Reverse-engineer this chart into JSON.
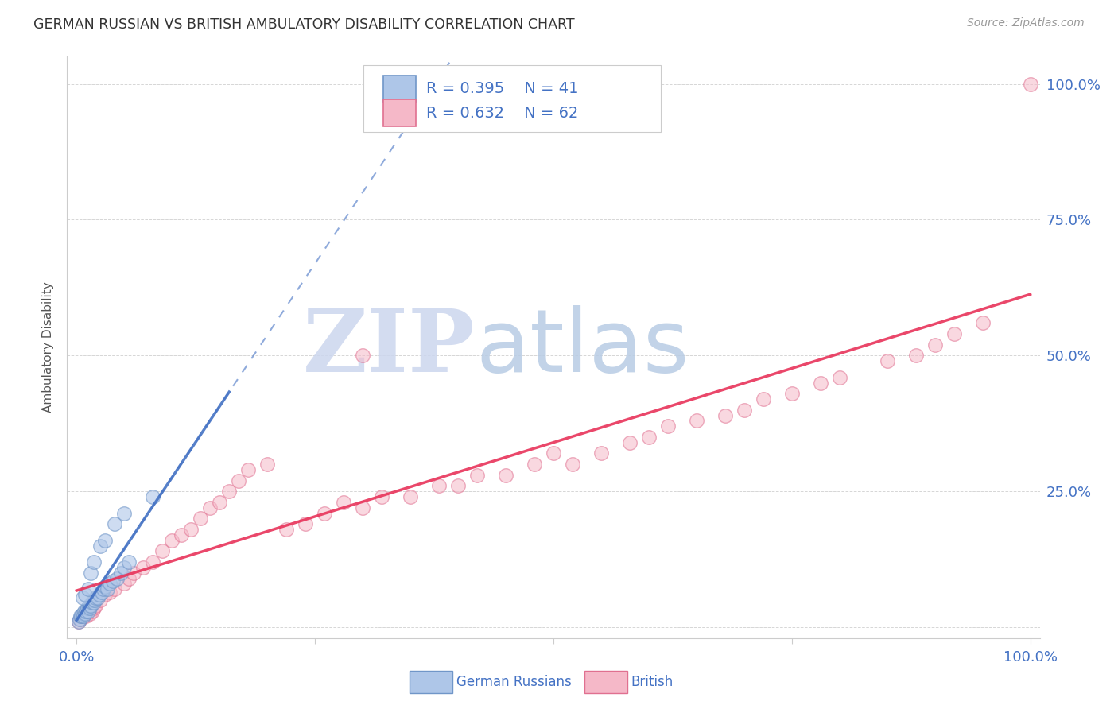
{
  "title": "GERMAN RUSSIAN VS BRITISH AMBULATORY DISABILITY CORRELATION CHART",
  "source": "Source: ZipAtlas.com",
  "ylabel": "Ambulatory Disability",
  "legend_r1": "R = 0.395",
  "legend_n1": "N = 41",
  "legend_r2": "R = 0.632",
  "legend_n2": "N = 62",
  "blue_fill": "#aec6e8",
  "blue_edge": "#7096c8",
  "blue_line": "#4472c4",
  "pink_fill": "#f5b8c8",
  "pink_edge": "#e07090",
  "pink_line": "#e8335a",
  "axis_color": "#cccccc",
  "grid_color": "#cccccc",
  "title_color": "#333333",
  "source_color": "#999999",
  "tick_color": "#4472c4",
  "ylabel_color": "#555555",
  "watermark_zip_color": "#c8d4ee",
  "watermark_atlas_color": "#b8c8e8",
  "legend_text_color": "#333333",
  "legend_value_color": "#4472c4",
  "blue_x": [
    0.002,
    0.003,
    0.004,
    0.005,
    0.006,
    0.007,
    0.008,
    0.009,
    0.01,
    0.011,
    0.012,
    0.013,
    0.014,
    0.015,
    0.016,
    0.017,
    0.018,
    0.019,
    0.02,
    0.022,
    0.024,
    0.026,
    0.028,
    0.03,
    0.032,
    0.035,
    0.038,
    0.042,
    0.046,
    0.05,
    0.055,
    0.006,
    0.009,
    0.012,
    0.015,
    0.018,
    0.025,
    0.03,
    0.04,
    0.05,
    0.08
  ],
  "blue_y": [
    0.01,
    0.015,
    0.02,
    0.02,
    0.025,
    0.02,
    0.03,
    0.025,
    0.03,
    0.035,
    0.03,
    0.04,
    0.035,
    0.04,
    0.045,
    0.05,
    0.045,
    0.05,
    0.055,
    0.055,
    0.06,
    0.065,
    0.07,
    0.075,
    0.07,
    0.08,
    0.085,
    0.09,
    0.1,
    0.11,
    0.12,
    0.055,
    0.06,
    0.07,
    0.1,
    0.12,
    0.15,
    0.16,
    0.19,
    0.21,
    0.24
  ],
  "pink_x": [
    0.002,
    0.004,
    0.006,
    0.008,
    0.01,
    0.012,
    0.014,
    0.016,
    0.018,
    0.02,
    0.025,
    0.03,
    0.035,
    0.04,
    0.05,
    0.055,
    0.06,
    0.07,
    0.08,
    0.09,
    0.1,
    0.11,
    0.12,
    0.13,
    0.14,
    0.15,
    0.16,
    0.17,
    0.18,
    0.2,
    0.22,
    0.24,
    0.26,
    0.28,
    0.3,
    0.32,
    0.35,
    0.38,
    0.4,
    0.42,
    0.45,
    0.48,
    0.5,
    0.52,
    0.55,
    0.58,
    0.6,
    0.62,
    0.65,
    0.68,
    0.7,
    0.72,
    0.75,
    0.78,
    0.8,
    0.85,
    0.88,
    0.9,
    0.92,
    0.95,
    1.0,
    0.3
  ],
  "pink_y": [
    0.01,
    0.015,
    0.02,
    0.025,
    0.02,
    0.03,
    0.025,
    0.03,
    0.035,
    0.04,
    0.05,
    0.06,
    0.065,
    0.07,
    0.08,
    0.09,
    0.1,
    0.11,
    0.12,
    0.14,
    0.16,
    0.17,
    0.18,
    0.2,
    0.22,
    0.23,
    0.25,
    0.27,
    0.29,
    0.3,
    0.18,
    0.19,
    0.21,
    0.23,
    0.22,
    0.24,
    0.24,
    0.26,
    0.26,
    0.28,
    0.28,
    0.3,
    0.32,
    0.3,
    0.32,
    0.34,
    0.35,
    0.37,
    0.38,
    0.39,
    0.4,
    0.42,
    0.43,
    0.45,
    0.46,
    0.49,
    0.5,
    0.52,
    0.54,
    0.56,
    1.0,
    0.5
  ]
}
